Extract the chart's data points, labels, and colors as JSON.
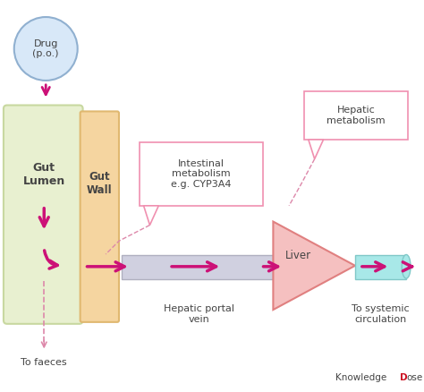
{
  "bg_color": "#ffffff",
  "arrow_color": "#cc1177",
  "gut_lumen_fill": "#e8f0d0",
  "gut_lumen_edge": "#c8d8a0",
  "gut_wall_fill": "#f5d5a0",
  "gut_wall_edge": "#e0b870",
  "portal_vein_fill": "#d0d0e0",
  "portal_vein_edge": "#b0b0c0",
  "liver_fill": "#f5c0c0",
  "liver_edge": "#e08080",
  "systemic_fill": "#a8e8e8",
  "systemic_edge": "#80c8c8",
  "drug_circle_fill": "#d8e8f8",
  "drug_circle_edge": "#90b0d0",
  "box_edge": "#f090b0",
  "dashed_color": "#dd88aa",
  "text_color": "#444444",
  "brand_color": "#444444",
  "brand_red": "#cc1122",
  "label_drug": "Drug\n(p.o.)",
  "label_gut_lumen": "Gut\nLumen",
  "label_gut_wall": "Gut\nWall",
  "label_portal": "Hepatic portal\nvein",
  "label_liver": "Liver",
  "label_systemic": "To systemic\ncirculation",
  "label_faeces": "To faeces",
  "label_intestinal": "Intestinal\nmetabolism\ne.g. CYP3A4",
  "label_hepatic": "Hepatic\nmetabolism"
}
